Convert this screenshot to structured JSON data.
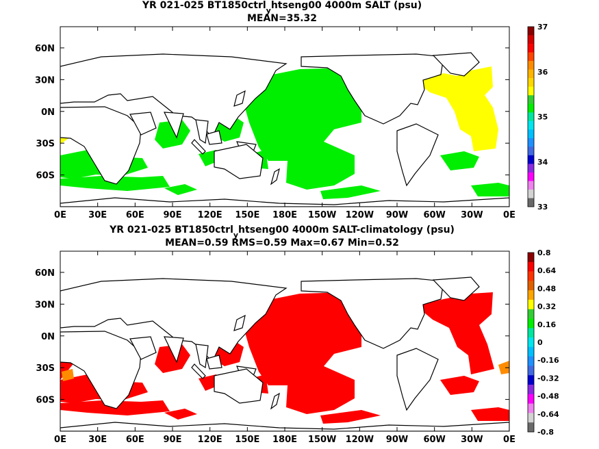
{
  "panels": [
    {
      "title_prefix": "YR 021-025 BT1850ctrl",
      "title_sub": "y",
      "title_suffix": "htseng00 4000m SALT (psu)",
      "stats": "MEAN=35.32",
      "field_color": "#00ee00",
      "accent_color": "#ffff00",
      "colorbar": {
        "labels": [
          "37",
          "36",
          "35",
          "34",
          "33"
        ],
        "colors": [
          "#8b0000",
          "#d40000",
          "#ff0000",
          "#ff4500",
          "#ff8c00",
          "#ffb400",
          "#ffd700",
          "#ffff00",
          "#32cd32",
          "#00ee00",
          "#00e5a0",
          "#00e5ee",
          "#00bfff",
          "#1e90ff",
          "#4169e1",
          "#0000cd",
          "#8a2be2",
          "#ff00ff",
          "#ee82ee",
          "#d3d3d3",
          "#696969"
        ]
      }
    },
    {
      "title_prefix": "YR 021-025 BT1850ctrl",
      "title_sub": "y",
      "title_suffix": "htseng00 4000m SALT-climatology (psu)",
      "stats": "MEAN=0.59   RMS=0.59   Max=0.67   Min=0.52",
      "field_color": "#ff0000",
      "accent_color": "#ff8c00",
      "colorbar": {
        "labels": [
          "0.8",
          "0.64",
          "0.48",
          "0.32",
          "0.16",
          "0",
          "-0.16",
          "-0.32",
          "-0.48",
          "-0.64",
          "-0.8"
        ],
        "colors": [
          "#8b0000",
          "#ff0000",
          "#ff3300",
          "#e06000",
          "#ffa500",
          "#ffff00",
          "#32cd32",
          "#00ee00",
          "#00e5a0",
          "#00e5ee",
          "#00bfff",
          "#1e90ff",
          "#4169e1",
          "#0000cd",
          "#8a2be2",
          "#ff00ff",
          "#ee82ee",
          "#d3d3d3",
          "#696969"
        ]
      }
    }
  ],
  "x_ticks": [
    "0E",
    "30E",
    "60E",
    "90E",
    "120E",
    "150E",
    "180E",
    "150W",
    "120W",
    "90W",
    "60W",
    "30W",
    "0E"
  ],
  "y_ticks": [
    "60N",
    "30N",
    "0N",
    "30S",
    "60S"
  ]
}
